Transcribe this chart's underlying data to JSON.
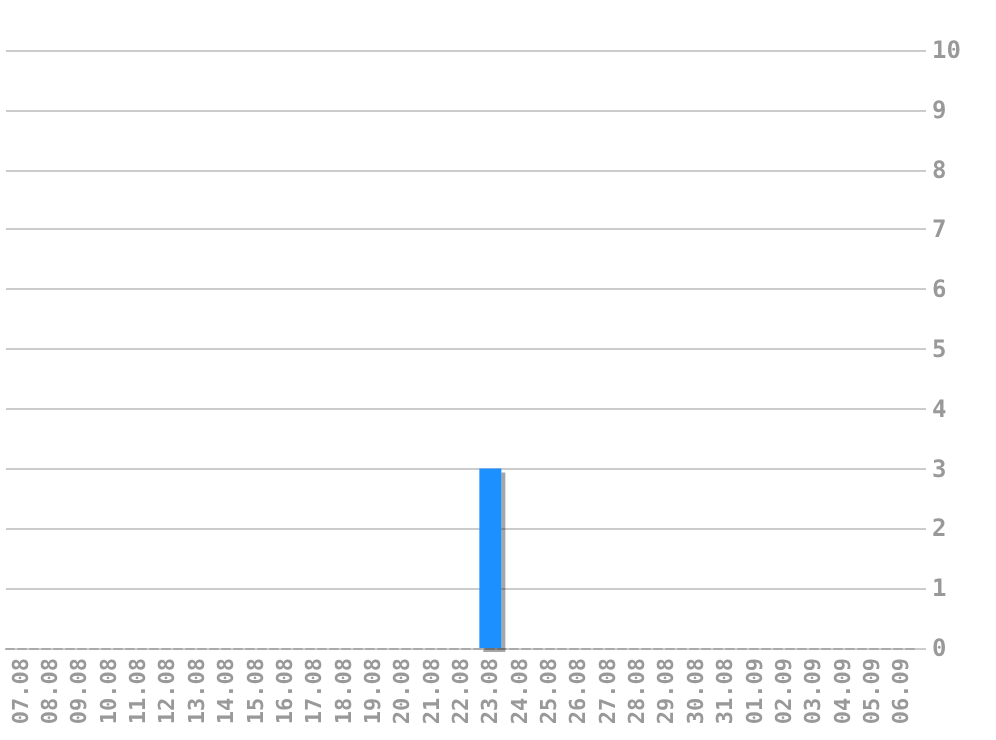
{
  "chart_data": {
    "type": "bar",
    "categories": [
      "07.08",
      "08.08",
      "09.08",
      "10.08",
      "11.08",
      "12.08",
      "13.08",
      "14.08",
      "15.08",
      "16.08",
      "17.08",
      "18.08",
      "19.08",
      "20.08",
      "21.08",
      "22.08",
      "23.08",
      "24.08",
      "25.08",
      "26.08",
      "27.08",
      "28.08",
      "29.08",
      "30.08",
      "31.08",
      "01.09",
      "02.09",
      "03.09",
      "04.09",
      "05.09",
      "06.09"
    ],
    "values": [
      0,
      0,
      0,
      0,
      0,
      0,
      0,
      0,
      0,
      0,
      0,
      0,
      0,
      0,
      0,
      0,
      3,
      0,
      0,
      0,
      0,
      0,
      0,
      0,
      0,
      0,
      0,
      0,
      0,
      0,
      0
    ],
    "color": "#1e90ff",
    "ylim": [
      0,
      10
    ],
    "yticks": [
      0,
      1,
      2,
      3,
      4,
      5,
      6,
      7,
      8,
      9,
      10
    ],
    "grid": "y"
  }
}
